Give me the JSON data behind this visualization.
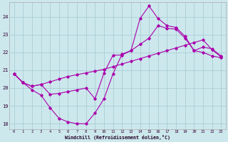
{
  "xlabel": "Windchill (Refroidissement éolien,°C)",
  "background_color": "#cce8ed",
  "grid_color": "#aacdd4",
  "line_color": "#aa00aa",
  "xlim": [
    -0.5,
    23.5
  ],
  "ylim": [
    17.7,
    24.8
  ],
  "yticks": [
    18,
    19,
    20,
    21,
    22,
    23,
    24
  ],
  "xticks": [
    0,
    1,
    2,
    3,
    4,
    5,
    6,
    7,
    8,
    9,
    10,
    11,
    12,
    13,
    14,
    15,
    16,
    17,
    18,
    19,
    20,
    21,
    22,
    23
  ],
  "series": [
    {
      "x": [
        0,
        1,
        2,
        3,
        4,
        5,
        6,
        7,
        8,
        9,
        10,
        11,
        12,
        13,
        14,
        15,
        16,
        17,
        18,
        19,
        20,
        21,
        22,
        23
      ],
      "y": [
        20.8,
        20.3,
        19.9,
        19.6,
        18.9,
        18.3,
        18.1,
        18.0,
        18.0,
        18.6,
        19.4,
        20.8,
        21.9,
        22.1,
        23.9,
        24.6,
        23.9,
        23.5,
        23.4,
        22.9,
        22.1,
        22.3,
        22.2,
        21.8
      ]
    },
    {
      "x": [
        0,
        1,
        2,
        3,
        4,
        5,
        6,
        7,
        8,
        9,
        10,
        11,
        12,
        13,
        14,
        15,
        16,
        17,
        18,
        19,
        20,
        21,
        22,
        23
      ],
      "y": [
        20.8,
        20.3,
        20.1,
        20.2,
        20.35,
        20.5,
        20.65,
        20.75,
        20.85,
        20.95,
        21.05,
        21.2,
        21.35,
        21.5,
        21.65,
        21.8,
        21.95,
        22.1,
        22.25,
        22.4,
        22.55,
        22.7,
        22.15,
        21.75
      ]
    },
    {
      "x": [
        0,
        1,
        2,
        3,
        4,
        5,
        6,
        7,
        8,
        9,
        10,
        11,
        12,
        13,
        14,
        15,
        16,
        17,
        18,
        19,
        20,
        21,
        22,
        23
      ],
      "y": [
        20.8,
        20.3,
        20.1,
        20.2,
        19.65,
        19.7,
        19.8,
        19.9,
        20.0,
        19.4,
        20.85,
        21.85,
        21.85,
        22.1,
        22.45,
        22.8,
        23.5,
        23.35,
        23.3,
        22.8,
        22.1,
        22.0,
        21.8,
        21.7
      ]
    }
  ]
}
